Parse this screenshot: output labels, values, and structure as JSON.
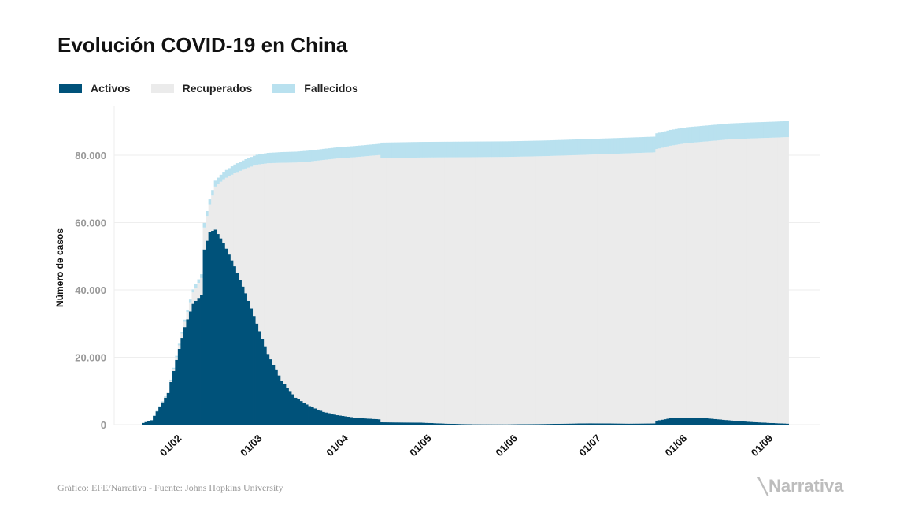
{
  "title": "Evolución COVID-19 en China",
  "footer": {
    "source": "Gráfico: EFE/Narrativa - Fuente: Johns Hopkins University",
    "logo": "Narrativa"
  },
  "colors": {
    "activos": "#00527a",
    "recuperados": "#ebebeb",
    "fallecidos": "#b9e1ef",
    "grid": "#eeeeee"
  },
  "chart_data": {
    "type": "area",
    "stacked": true,
    "title": "Evolución COVID-19 en China",
    "xlabel": "",
    "ylabel": "Número de casos",
    "ylim": [
      0,
      92000
    ],
    "xlim": [
      "2020-01-22",
      "2020-09-10"
    ],
    "grid": true,
    "legend_placement": "top-left",
    "yticks": [
      0,
      20000,
      40000,
      60000,
      80000
    ],
    "ytick_labels": [
      "0",
      "20.000",
      "40.000",
      "60.000",
      "80.000"
    ],
    "xticks": [
      "2020-02-01",
      "2020-03-01",
      "2020-04-01",
      "2020-05-01",
      "2020-06-01",
      "2020-07-01",
      "2020-08-01",
      "2020-09-01"
    ],
    "xtick_labels": [
      "01/02",
      "01/03",
      "01/04",
      "01/05",
      "01/06",
      "01/07",
      "01/08",
      "01/09"
    ],
    "dates": [
      "2020-01-22",
      "2020-01-25",
      "2020-01-28",
      "2020-01-31",
      "2020-02-03",
      "2020-02-06",
      "2020-02-09",
      "2020-02-12",
      "2020-02-13",
      "2020-02-15",
      "2020-02-17",
      "2020-02-20",
      "2020-02-24",
      "2020-02-28",
      "2020-03-03",
      "2020-03-07",
      "2020-03-12",
      "2020-03-17",
      "2020-03-22",
      "2020-03-27",
      "2020-04-01",
      "2020-04-08",
      "2020-04-16",
      "2020-04-17",
      "2020-05-01",
      "2020-05-10",
      "2020-05-20",
      "2020-06-01",
      "2020-06-15",
      "2020-07-01",
      "2020-07-15",
      "2020-07-24",
      "2020-07-25",
      "2020-07-30",
      "2020-08-05",
      "2020-08-12",
      "2020-08-20",
      "2020-08-28",
      "2020-09-04",
      "2020-09-10"
    ],
    "series": [
      {
        "name": "Activos",
        "values": [
          503,
          1312,
          5271,
          9371,
          19218,
          28974,
          35878,
          38500,
          52000,
          57200,
          57900,
          54000,
          47000,
          39000,
          30000,
          21000,
          13000,
          8000,
          5500,
          3800,
          2800,
          2000,
          1600,
          700,
          600,
          300,
          100,
          80,
          200,
          400,
          300,
          350,
          1200,
          1900,
          2100,
          1900,
          1300,
          800,
          500,
          300
        ]
      },
      {
        "name": "Recuperados",
        "values": [
          28,
          52,
          107,
          218,
          795,
          1551,
          3364,
          5038,
          6527,
          8163,
          12766,
          18841,
          27649,
          37044,
          47208,
          56622,
          64760,
          69828,
          72632,
          74801,
          76245,
          77472,
          78456,
          78424,
          78722,
          79073,
          79325,
          79410,
          79540,
          79775,
          80282,
          80500,
          80640,
          80930,
          81510,
          82200,
          83390,
          84180,
          84670,
          85065
        ]
      },
      {
        "name": "Fallecidos",
        "values": [
          17,
          42,
          131,
          213,
          425,
          636,
          908,
          1115,
          1368,
          1523,
          1770,
          2236,
          2592,
          2788,
          2943,
          3073,
          3172,
          3230,
          3265,
          3296,
          3316,
          3337,
          3346,
          4636,
          4637,
          4637,
          4638,
          4638,
          4638,
          4641,
          4644,
          4650,
          4660,
          4670,
          4690,
          4700,
          4710,
          4720,
          4730,
          4735
        ]
      }
    ]
  }
}
